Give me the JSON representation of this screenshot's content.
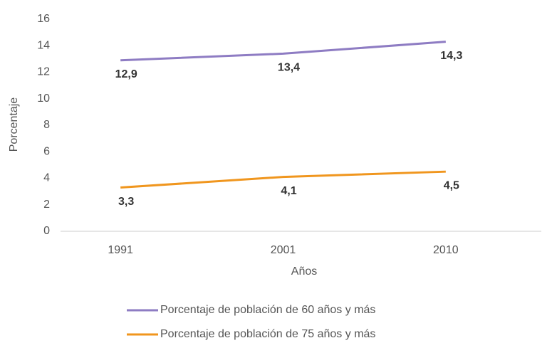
{
  "chart_data": {
    "type": "line",
    "categories": [
      "1991",
      "2001",
      "2010"
    ],
    "series": [
      {
        "name": "Porcentaje de población de 60 años y más",
        "color": "#8e7cc3",
        "values": [
          12.9,
          13.4,
          14.3
        ],
        "value_labels": [
          "12,9",
          "13,4",
          "14,3"
        ]
      },
      {
        "name": "Porcentaje de población de 75 años y más",
        "color": "#f0961e",
        "values": [
          3.3,
          4.1,
          4.5
        ],
        "value_labels": [
          "3,3",
          "4,1",
          "4,5"
        ]
      }
    ],
    "x_label": "Años",
    "y_label": "Porcentaje",
    "ylim": [
      0,
      16
    ],
    "yticks": [
      0,
      2,
      4,
      6,
      8,
      10,
      12,
      14,
      16
    ],
    "grid": false
  }
}
